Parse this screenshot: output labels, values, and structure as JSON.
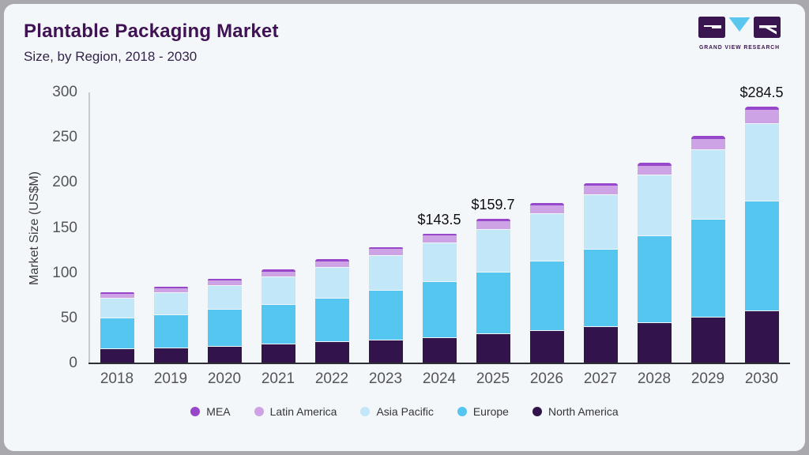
{
  "card": {
    "title": "Plantable Packaging Market",
    "subtitle": "Size, by Region, 2018 - 2030",
    "logo_text": "GRAND VIEW RESEARCH"
  },
  "colors": {
    "page_background": "#a8a8ad",
    "card_background": "#f4f7fa",
    "title_text": "#3f1254",
    "axis_text": "#53545c",
    "baseline": "#2e2e36",
    "logo_purple": "#3a1650",
    "logo_blue": "#5bc7ef"
  },
  "chart_data": {
    "type": "bar",
    "stacked": true,
    "title": "Plantable Packaging Market",
    "subtitle": "Size, by Region, 2018 - 2030",
    "ylabel": "Market Size (US$M)",
    "ylim": [
      0,
      300
    ],
    "yticks": [
      0,
      50,
      100,
      150,
      200,
      250,
      300
    ],
    "grid": false,
    "legend_position": "bottom",
    "categories": [
      2018,
      2019,
      2020,
      2021,
      2022,
      2023,
      2024,
      2025,
      2026,
      2027,
      2028,
      2029,
      2030
    ],
    "series": [
      {
        "key": "north_america",
        "name": "North America",
        "color": "#32134b",
        "values": [
          15.5,
          16.8,
          18.8,
          21.0,
          23.2,
          25.6,
          28.3,
          32.0,
          35.5,
          40.0,
          45.0,
          50.5,
          57.5
        ]
      },
      {
        "key": "europe",
        "name": "Europe",
        "color": "#54c6f0",
        "values": [
          34.0,
          36.5,
          40.5,
          44.0,
          48.5,
          54.5,
          62.0,
          68.5,
          77.0,
          86.0,
          96.0,
          109.0,
          122.0
        ]
      },
      {
        "key": "asia_pacific",
        "name": "Asia Pacific",
        "color": "#c2e7f8",
        "values": [
          22.5,
          24.5,
          26.8,
          30.3,
          34.5,
          38.5,
          42.3,
          47.5,
          52.5,
          60.0,
          67.0,
          76.5,
          85.5
        ]
      },
      {
        "key": "latin_america",
        "name": "Latin America",
        "color": "#cda3e6",
        "values": [
          4.8,
          5.2,
          5.7,
          6.3,
          7.1,
          7.9,
          8.8,
          9.3,
          10.0,
          10.5,
          11.0,
          12.0,
          16.0
        ]
      },
      {
        "key": "mea",
        "name": "MEA",
        "color": "#9747c9",
        "values": [
          1.4,
          1.5,
          1.7,
          1.9,
          2.2,
          2.0,
          2.1,
          2.4,
          2.5,
          3.0,
          3.5,
          3.5,
          3.5
        ]
      }
    ],
    "totals": [
      78.2,
      84.5,
      93.5,
      103.5,
      115.5,
      128.5,
      143.5,
      159.7,
      177.5,
      199.5,
      222.5,
      251.5,
      284.5
    ],
    "callouts": {
      "2024": "$143.5",
      "2025": "$159.7",
      "2030": "$284.5"
    },
    "legend_order": [
      "MEA",
      "Latin America",
      "Asia Pacific",
      "Europe",
      "North America"
    ]
  }
}
